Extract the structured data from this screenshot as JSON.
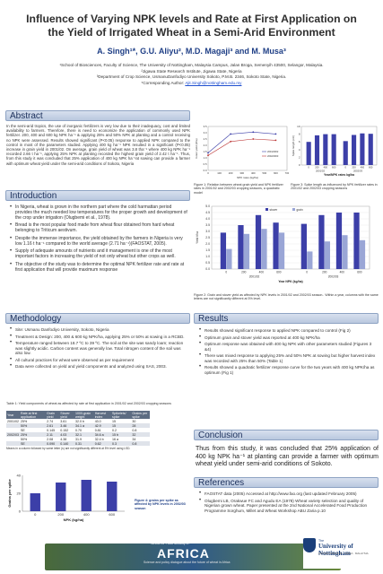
{
  "title": "Influence of Varying NPK levels and Rate at First Application on the Yield of Irrigated Wheat in a Semi-Arid Environment",
  "authors": "A. Singh¹*, G.U. Aliyu², M.D. Magaji³ and M. Musa³",
  "affiliations": [
    "¹School of Biosciences, Faculty of Science, The University of Nottingham, Malaysia Campus, Jalan Broga, Semenyih 43500, Selangor, Malaysia.",
    "²Jigawa State Research Institute, Jigawa State, Nigeria",
    "³Department of Crop Science, UsmanuDanfodiyo University Sokoto, P.M.B. 2346, Sokoto State, Nigeria.",
    "*Corresponding Author:"
  ],
  "corresponding_email": "Ajit.Singh@nottingham.edu.my",
  "sections": {
    "abstract": {
      "heading": "Abstract",
      "text": "In the semi-arid tropics, the use of inorganic fertilizers is very low due to their inadequacy, cost and limited availability to farmers. Therefore, there is need to economize the application of commonly used NPK fertilizer. 200, 400 and 600 kg NPK ha⁻¹ & applying 25% and 50% NPK at planting and a control receiving no NPK were assessed. Results showed significant (P<0.05) response to applied NPK compared to the control in most of the parameters studied. Applying 400 kg ha⁻¹ NPK resulted in a significant (P<0.05) increase in grain yield in 2001/02. On average, grain yield of wheat was 3.8 tha⁻¹ where 400 kg NPK ha⁻¹ recorded 2.66 t ha⁻¹, applying 25% NPK at planting recorded the highest grain yield of 2.42 t ha⁻¹. Thus, from this study it was concluded that 25% application of 400 kg NPK ha⁻¹at sowing can provide a farmer with optimum wheat yield under the semi-arid conditions of Sokoto, Nigeria"
    },
    "introduction": {
      "heading": "Introduction",
      "bullets": [
        "In Nigeria, wheat is grown in the northern part where the cold harmattan period provides the much needed low temperatures for the proper growth and development of the crop under irrigation (Olugbemi et al., 1978).",
        "Bread is the most popular food made from wheat flour obtained from hard wheat belonging to Triticum aestivum.",
        "Despite the immense importance, the yield obtained by the farmers in Nigeria is very low 1.16 t ha⁻¹ compared to the world average (2.71 ha⁻¹)(FAOSTAT, 2005).",
        "Supply of adequate amounts of nutrients and it management is one of the most important factors in increasing the yield of not only wheat but other crops as well.",
        "The objective of the study was to determine the optimal NPK fertilizer rate and rate at first application that will provide maximum response"
      ]
    },
    "methodology": {
      "heading": "Methodology",
      "bullets": [
        "Site: Usmanu Danfodiyo University, Sokoto, Nigeria",
        "Treatment & Design: 200, 400 & 600 kg NPK/ha, applying 25% or 50% at sowing in a RCBD.",
        "Temperature ranged between 18.7 ºC to 39 ºC. The soil at the site was sandy loam; reaction was slightly acidic. Carbon content was generally low. Total nitrogen content of the soil was also low.",
        "All cultural practices for wheat were observed as per requirement",
        "Data were collected on yield and yield components and analyzed using SAS, 2003."
      ]
    },
    "results": {
      "heading": "Results",
      "bullets": [
        "Results showed significant response to applied NPK compared to control (Fig 2)",
        "Optimum grain and stover yield was reported at 400 kg NPK/ha",
        "Optimum response was obtained with 400 kg NPK with other parameters studied (Figures 3 &4)",
        "There was mixed response to applying 25% and 50% NPK at sowing but higher harvest index was recorded with 25% than 50% (Table 1)",
        "Results showed a quadratic fertilizer response curve for the two years with 400 kg NPK/ha as optimum (Fig 1)"
      ]
    },
    "conclusion": {
      "heading": "Conclusion",
      "text": "Thus from this study, it was concluded that 25% application of 400 kg NPK ha⁻¹ at planting can provide a farmer with optimum wheat yield under semi-arid conditions of Sokoto."
    },
    "references": {
      "heading": "References",
      "bullets": [
        "FAOSTAT data (2005) Accessed at http://www.fao.org (last updated February 2005)",
        "Olugbemi LB, Orakwue FC and Agudu EA (1978) Wheat variety selection and quality of Nigerian grown wheat. Paper presented at the 2nd National Accelerated Food Production Programme Sorghum, Millet and Wheat Workshop ABU Zaria p.10"
      ]
    }
  },
  "figure_captions": {
    "fig1": "Figure 1: Relation between wheat grain yield and NPK fertilizer rates in 2001/02 and 2002/03 cropping seasons, a quadratic model",
    "fig2": "Figure 2: Grain and stover yield as affected by NPK levels in 2001/02 and 2002/03 season.. Within a year, columns with the same letters are not significantly different at 5% level.",
    "fig3": "Figure 3: Spike length as influenced by NPK fertilizer rates in 2001/02 and 2002/03 cropping seasons",
    "fig4": "Figure 4: grains per spike as affected by NPK levels in 2002/03 season"
  },
  "table1": {
    "caption": "Table 1: Yield components of wheat as affected by rate at first application in 2001/02 and 2002/03 cropping seasons",
    "headers": [
      "Year",
      "Rate at first application",
      "Grain yield",
      "Stover yield",
      "1000-grain weight",
      "Harvest index",
      "Spikelets/ spike",
      "Grains per spike"
    ],
    "rows": [
      [
        "2001/02",
        "25%",
        "2.74",
        "3.61",
        "32.0 b",
        "43.0",
        "15",
        "30"
      ],
      [
        "",
        "50%",
        "2.61",
        "3.46",
        "34.1 a",
        "42.9",
        "15",
        "28"
      ],
      [
        "",
        "SE",
        "0.145",
        "0.152",
        "0.70",
        "0.81",
        "0.2",
        "0.8"
      ],
      [
        "2002/03",
        "25%",
        "2.11",
        "4.03",
        "32.1",
        "34.6 a",
        "15 b",
        "32"
      ],
      [
        "",
        "50%",
        "2.08",
        "4.38",
        "31.9",
        "32.4 b",
        "16 a",
        "34"
      ],
      [
        "",
        "SE",
        "0.090",
        "0.140",
        "0.31",
        "0.62",
        "0.3",
        "0.8"
      ]
    ],
    "note": "Means in a column followed by same letter (s) are not significantly different at 5% level using LSD."
  },
  "footer": {
    "africa": "AFRICA",
    "africa_top": "Wheat for Food Security in",
    "africa_sub": "Science and policy dialogue about the future of wheat in Africa",
    "uni_prefix": "The",
    "uni_name": "University of Nottingham",
    "uni_sub": "UNITED KINGDOM · CHINA · MALAYSIA"
  },
  "chart_data": [
    {
      "type": "line",
      "id": "fig1",
      "xlabel": "NPK rates (kg/ha)",
      "ylabel": "Grain yield (t/ha)",
      "x": [
        0,
        200,
        400,
        600
      ],
      "xlim": [
        0,
        700
      ],
      "ylim": [
        0,
        3.5
      ],
      "series": [
        {
          "name": "2001/2002",
          "values": [
            1.4,
            2.9,
            3.05,
            2.9
          ]
        },
        {
          "name": "2002/2003",
          "values": [
            1.2,
            2.3,
            2.5,
            2.4
          ]
        }
      ],
      "yticks": [
        "0.0",
        "0.5",
        "1.0",
        "1.5",
        "2.0",
        "2.5",
        "3.0",
        "3.5"
      ],
      "xticks": [
        "0",
        "100",
        "200",
        "300",
        "400",
        "500",
        "600",
        "700"
      ]
    },
    {
      "type": "bar",
      "id": "fig3",
      "ylabel": "Spike length (cm)",
      "xlabel": "Year/NPK rates kg/ha",
      "categories": [
        "0",
        "200",
        "400",
        "600",
        "0",
        "200",
        "400",
        "600"
      ],
      "groups": [
        "2001/02",
        "2002/03"
      ],
      "values": [
        6.0,
        7.7,
        8.0,
        8.0,
        6.2,
        7.8,
        8.2,
        8.1
      ],
      "ylim": [
        0,
        10
      ],
      "yticks": [
        "0",
        "2",
        "4",
        "6",
        "8",
        "10"
      ]
    },
    {
      "type": "bar",
      "id": "fig2",
      "ylabel": "Yield t/ha",
      "xlabel": "Year NPK (kg/ha)",
      "categories": [
        "0",
        "200",
        "400",
        "600",
        "0",
        "200",
        "400",
        "600"
      ],
      "groups": [
        "2001/02",
        "2002/03"
      ],
      "series": [
        {
          "name": "stover",
          "values": [
            2.9,
            3.5,
            4.3,
            3.7,
            3.6,
            4.3,
            4.5,
            4.5
          ]
        },
        {
          "name": "grain",
          "values": [
            1.6,
            2.8,
            3.2,
            2.9,
            1.4,
            2.2,
            2.7,
            2.3
          ]
        }
      ],
      "ylim": [
        0,
        5
      ],
      "yticks": [
        "0.0",
        "0.5",
        "1.0",
        "1.5",
        "2.0",
        "2.5",
        "3.0",
        "3.5",
        "4.0",
        "4.5",
        "5.0"
      ]
    },
    {
      "type": "bar",
      "id": "fig4",
      "ylabel": "Grains per spike",
      "xlabel": "NPK (kg/ha)",
      "categories": [
        "0",
        "200",
        "400",
        "600"
      ],
      "values": [
        20,
        32,
        35,
        33
      ],
      "ylim": [
        0,
        40
      ],
      "yticks": [
        "0",
        "20",
        "40"
      ]
    }
  ],
  "colors": {
    "header_text": "#1b2f5b",
    "bar_primary": "#3c3fa8",
    "bar_secondary": "#9aa6d6",
    "author": "#1f3f86"
  }
}
